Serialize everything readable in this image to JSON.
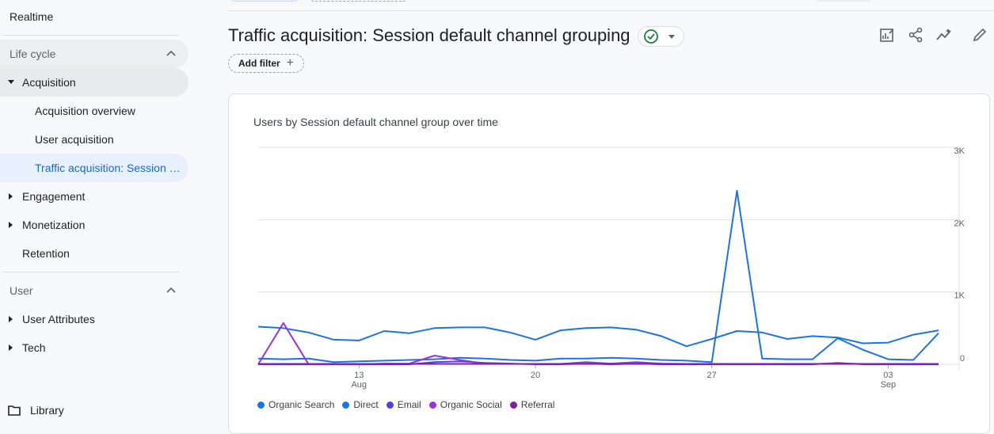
{
  "sidebar": {
    "realtime": "Realtime",
    "lifecycle": "Life cycle",
    "acquisition": "Acquisition",
    "acquisition_items": [
      "Acquisition overview",
      "User acquisition",
      "Traffic acquisition: Session default channel grouping"
    ],
    "engagement": "Engagement",
    "monetization": "Monetization",
    "retention": "Retention",
    "user_section": "User",
    "user_attributes": "User Attributes",
    "tech": "Tech",
    "library": "Library"
  },
  "header": {
    "title": "Traffic acquisition: Session default channel grouping",
    "add_filter": "Add filter"
  },
  "icons": {
    "status": "check-circle-icon",
    "toolbar": [
      "customize-report-icon",
      "share-icon",
      "insights-icon",
      "edit-icon"
    ]
  },
  "colors": {
    "active_nav_bg": "#e8f0fe",
    "active_nav_text": "#1967d2",
    "status_green": "#188038"
  },
  "chart_data": {
    "type": "line",
    "title": "Users by Session default channel group over time",
    "y_ticks": [
      "0",
      "1K",
      "2K",
      "3K"
    ],
    "ylim": [
      0,
      3000
    ],
    "x_ticks": [
      {
        "day": "13",
        "month": "Aug"
      },
      {
        "day": "20",
        "month": ""
      },
      {
        "day": "27",
        "month": ""
      },
      {
        "day": "03",
        "month": "Sep"
      }
    ],
    "x": [
      "Aug 9",
      "Aug 10",
      "Aug 11",
      "Aug 12",
      "Aug 13",
      "Aug 14",
      "Aug 15",
      "Aug 16",
      "Aug 17",
      "Aug 18",
      "Aug 19",
      "Aug 20",
      "Aug 21",
      "Aug 22",
      "Aug 23",
      "Aug 24",
      "Aug 25",
      "Aug 26",
      "Aug 27",
      "Aug 28",
      "Aug 29",
      "Aug 30",
      "Aug 31",
      "Sep 1",
      "Sep 2",
      "Sep 3",
      "Sep 4",
      "Sep 5"
    ],
    "series": [
      {
        "name": "Organic Search",
        "color": "#1a73e8",
        "values": [
          520,
          500,
          440,
          340,
          330,
          460,
          430,
          500,
          510,
          510,
          440,
          340,
          470,
          500,
          510,
          480,
          390,
          250,
          350,
          460,
          440,
          350,
          390,
          370,
          290,
          300,
          410,
          470
        ]
      },
      {
        "name": "Direct",
        "color": "#1a73e8",
        "values": [
          80,
          70,
          80,
          30,
          40,
          50,
          60,
          70,
          90,
          80,
          60,
          50,
          80,
          80,
          90,
          80,
          60,
          50,
          30,
          2400,
          80,
          70,
          70,
          360,
          200,
          70,
          60,
          430
        ]
      },
      {
        "name": "Email",
        "color": "#5b3be8",
        "values": [
          0,
          0,
          0,
          0,
          0,
          0,
          0,
          30,
          40,
          20,
          10,
          0,
          0,
          10,
          0,
          10,
          0,
          0,
          0,
          0,
          0,
          0,
          0,
          20,
          0,
          0,
          0,
          0
        ]
      },
      {
        "name": "Organic Social",
        "color": "#9334e6",
        "values": [
          0,
          570,
          0,
          0,
          0,
          10,
          10,
          120,
          60,
          10,
          5,
          5,
          5,
          30,
          10,
          30,
          10,
          5,
          5,
          5,
          5,
          5,
          5,
          10,
          5,
          5,
          5,
          5
        ]
      },
      {
        "name": "Referral",
        "color": "#7b1fa2",
        "values": [
          5,
          5,
          5,
          5,
          5,
          5,
          5,
          5,
          5,
          5,
          5,
          5,
          5,
          5,
          5,
          5,
          5,
          5,
          5,
          5,
          5,
          5,
          5,
          5,
          5,
          5,
          5,
          5
        ]
      }
    ],
    "legend_position": "bottom-left",
    "grid": true
  }
}
